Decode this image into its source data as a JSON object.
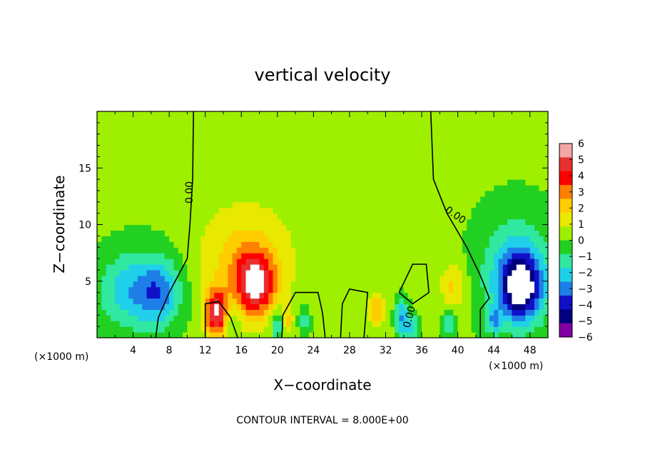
{
  "chart_data": {
    "type": "heatmap",
    "title": "vertical velocity",
    "xlabel": "X−coordinate",
    "ylabel": "Z−coordinate",
    "x_unit_left": "(×1000 m)",
    "x_unit_right": "(×1000 m)",
    "xlim": [
      0,
      50
    ],
    "ylim": [
      0,
      20
    ],
    "x_ticks": [
      4,
      8,
      12,
      16,
      20,
      24,
      28,
      32,
      36,
      40,
      44,
      48
    ],
    "y_ticks": [
      5,
      10,
      15
    ],
    "footer": "CONTOUR INTERVAL = 8.000E+00",
    "zero_contour_label": "0.00",
    "zero_contour_label_mid": "0.00",
    "colorbar": {
      "levels": [
        6,
        5,
        4,
        3,
        2,
        1,
        0,
        -1,
        -2,
        -3,
        -4,
        -5,
        -6
      ],
      "labels": [
        "6",
        "5",
        "4",
        "3",
        "2",
        "1",
        "0",
        "−1",
        "−2",
        "−3",
        "−4",
        "−5",
        "−6"
      ],
      "colors": [
        "#f4a5a5",
        "#e83030",
        "#ff0000",
        "#ff7f00",
        "#ffcc00",
        "#e8e800",
        "#9ef000",
        "#22d022",
        "#30e8a0",
        "#20d0e8",
        "#1e7ee8",
        "#1010c8",
        "#000080",
        "#8000a0"
      ]
    },
    "features": [
      {
        "x": 4.5,
        "z": 4.2,
        "value": -3.2,
        "sx": 3.0,
        "sz": 2.4
      },
      {
        "x": 7.0,
        "z": 4.0,
        "value": -2.0,
        "sx": 1.5,
        "sz": 2.0
      },
      {
        "x": 13.2,
        "z": 2.2,
        "value": 5.5,
        "sx": 0.9,
        "sz": 1.5
      },
      {
        "x": 15.0,
        "z": 1.8,
        "value": -1.5,
        "sx": 0.6,
        "sz": 1.2
      },
      {
        "x": 17.5,
        "z": 4.8,
        "value": 5.4,
        "sx": 1.6,
        "sz": 2.0
      },
      {
        "x": 16.0,
        "z": 7.0,
        "value": 2.0,
        "sx": 3.5,
        "sz": 3.5
      },
      {
        "x": 20.0,
        "z": 1.2,
        "value": -3.0,
        "sx": 0.5,
        "sz": 1.0
      },
      {
        "x": 21.0,
        "z": 1.5,
        "value": 2.0,
        "sx": 0.5,
        "sz": 0.8
      },
      {
        "x": 23.0,
        "z": 1.5,
        "value": -2.0,
        "sx": 0.5,
        "sz": 0.8
      },
      {
        "x": 31.0,
        "z": 2.5,
        "value": 3.0,
        "sx": 0.5,
        "sz": 1.0
      },
      {
        "x": 33.8,
        "z": 1.8,
        "value": -3.5,
        "sx": 0.5,
        "sz": 1.2
      },
      {
        "x": 35.0,
        "z": 1.0,
        "value": -2.5,
        "sx": 0.5,
        "sz": 0.8
      },
      {
        "x": 39.5,
        "z": 4.5,
        "value": 2.0,
        "sx": 1.0,
        "sz": 1.5
      },
      {
        "x": 39.0,
        "z": 1.2,
        "value": -2.5,
        "sx": 0.5,
        "sz": 0.8
      },
      {
        "x": 44.0,
        "z": 1.5,
        "value": -2.5,
        "sx": 0.6,
        "sz": 0.8
      },
      {
        "x": 47.0,
        "z": 4.5,
        "value": -6.0,
        "sx": 1.6,
        "sz": 2.0
      },
      {
        "x": 46.5,
        "z": 6.0,
        "value": -2.5,
        "sx": 3.0,
        "sz": 3.5
      },
      {
        "x": 27.0,
        "z": 10.0,
        "value": 0.4,
        "sx": 6.0,
        "sz": 6.0
      }
    ],
    "zero_contours": [
      [
        [
          10.7,
          20
        ],
        [
          10.6,
          14
        ],
        [
          10.3,
          10
        ],
        [
          10.0,
          7
        ],
        [
          8.0,
          4
        ],
        [
          6.8,
          1.8
        ],
        [
          6.5,
          0
        ]
      ],
      [
        [
          37.0,
          20
        ],
        [
          37.3,
          14
        ],
        [
          38.8,
          11
        ],
        [
          41.0,
          8
        ],
        [
          42.5,
          5.5
        ],
        [
          43.5,
          3.5
        ],
        [
          42.5,
          2.5
        ],
        [
          42.5,
          0
        ]
      ],
      [
        [
          12.0,
          0
        ],
        [
          12.0,
          3.0
        ],
        [
          13.5,
          3.2
        ],
        [
          14.8,
          1.8
        ],
        [
          15.6,
          0
        ]
      ],
      [
        [
          25.3,
          0
        ],
        [
          25.0,
          2.2
        ],
        [
          24.5,
          4.0
        ],
        [
          22.0,
          4.0
        ],
        [
          20.6,
          2.0
        ],
        [
          20.5,
          0
        ]
      ],
      [
        [
          27.0,
          0
        ],
        [
          27.2,
          3.0
        ],
        [
          28.0,
          4.3
        ],
        [
          30.0,
          4.0
        ],
        [
          29.8,
          2.0
        ],
        [
          29.6,
          0
        ]
      ],
      [
        [
          33.5,
          4.0
        ],
        [
          35.0,
          6.5
        ],
        [
          36.5,
          6.5
        ],
        [
          36.8,
          4.0
        ],
        [
          35.0,
          3.0
        ],
        [
          33.5,
          4.0
        ]
      ]
    ]
  }
}
